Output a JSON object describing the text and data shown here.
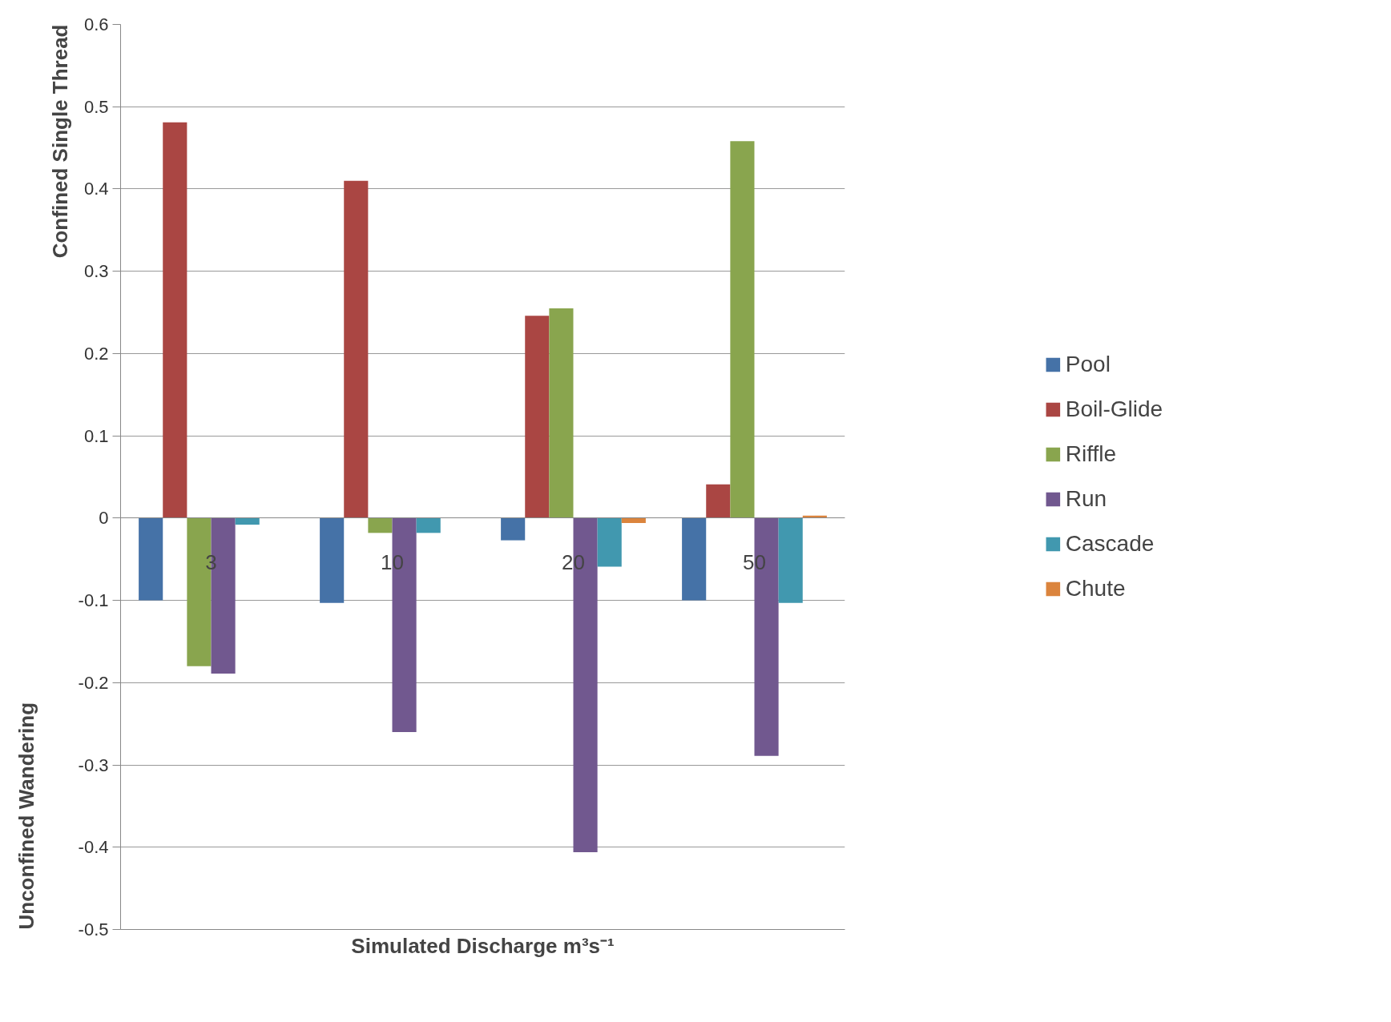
{
  "chart_data": {
    "type": "bar",
    "xlabel": "Simulated Discharge m³s⁻¹",
    "ylabel": "Confined Single Thread",
    "annotations": [
      "Unconfined Wandering"
    ],
    "categories": [
      "3",
      "10",
      "20",
      "50"
    ],
    "series": [
      {
        "name": "Pool",
        "color": "#4572a7",
        "values": [
          -0.1,
          -0.103,
          -0.027,
          -0.1
        ]
      },
      {
        "name": "Boil-Glide",
        "color": "#aa4643",
        "values": [
          0.481,
          0.41,
          0.246,
          0.041
        ]
      },
      {
        "name": "Riffle",
        "color": "#89a54e",
        "values": [
          -0.18,
          -0.018,
          0.255,
          0.458
        ]
      },
      {
        "name": "Run",
        "color": "#71588f",
        "values": [
          -0.189,
          -0.26,
          -0.406,
          -0.289
        ]
      },
      {
        "name": "Cascade",
        "color": "#4198af",
        "values": [
          -0.008,
          -0.018,
          -0.059,
          -0.103
        ]
      },
      {
        "name": "Chute",
        "color": "#db843d",
        "values": [
          0,
          0,
          -0.006,
          0.003
        ]
      }
    ],
    "ylim": [
      -0.5,
      0.6
    ],
    "yticks": [
      {
        "value": -0.5,
        "label": "-0.5"
      },
      {
        "value": -0.4,
        "label": "-0.4"
      },
      {
        "value": -0.3,
        "label": "-0.3"
      },
      {
        "value": -0.2,
        "label": "-0.2"
      },
      {
        "value": -0.1,
        "label": "-0.1"
      },
      0,
      0.1,
      0.2,
      0.3,
      0.4,
      0.5,
      0.6
    ],
    "grid": "y",
    "legend": "right"
  }
}
